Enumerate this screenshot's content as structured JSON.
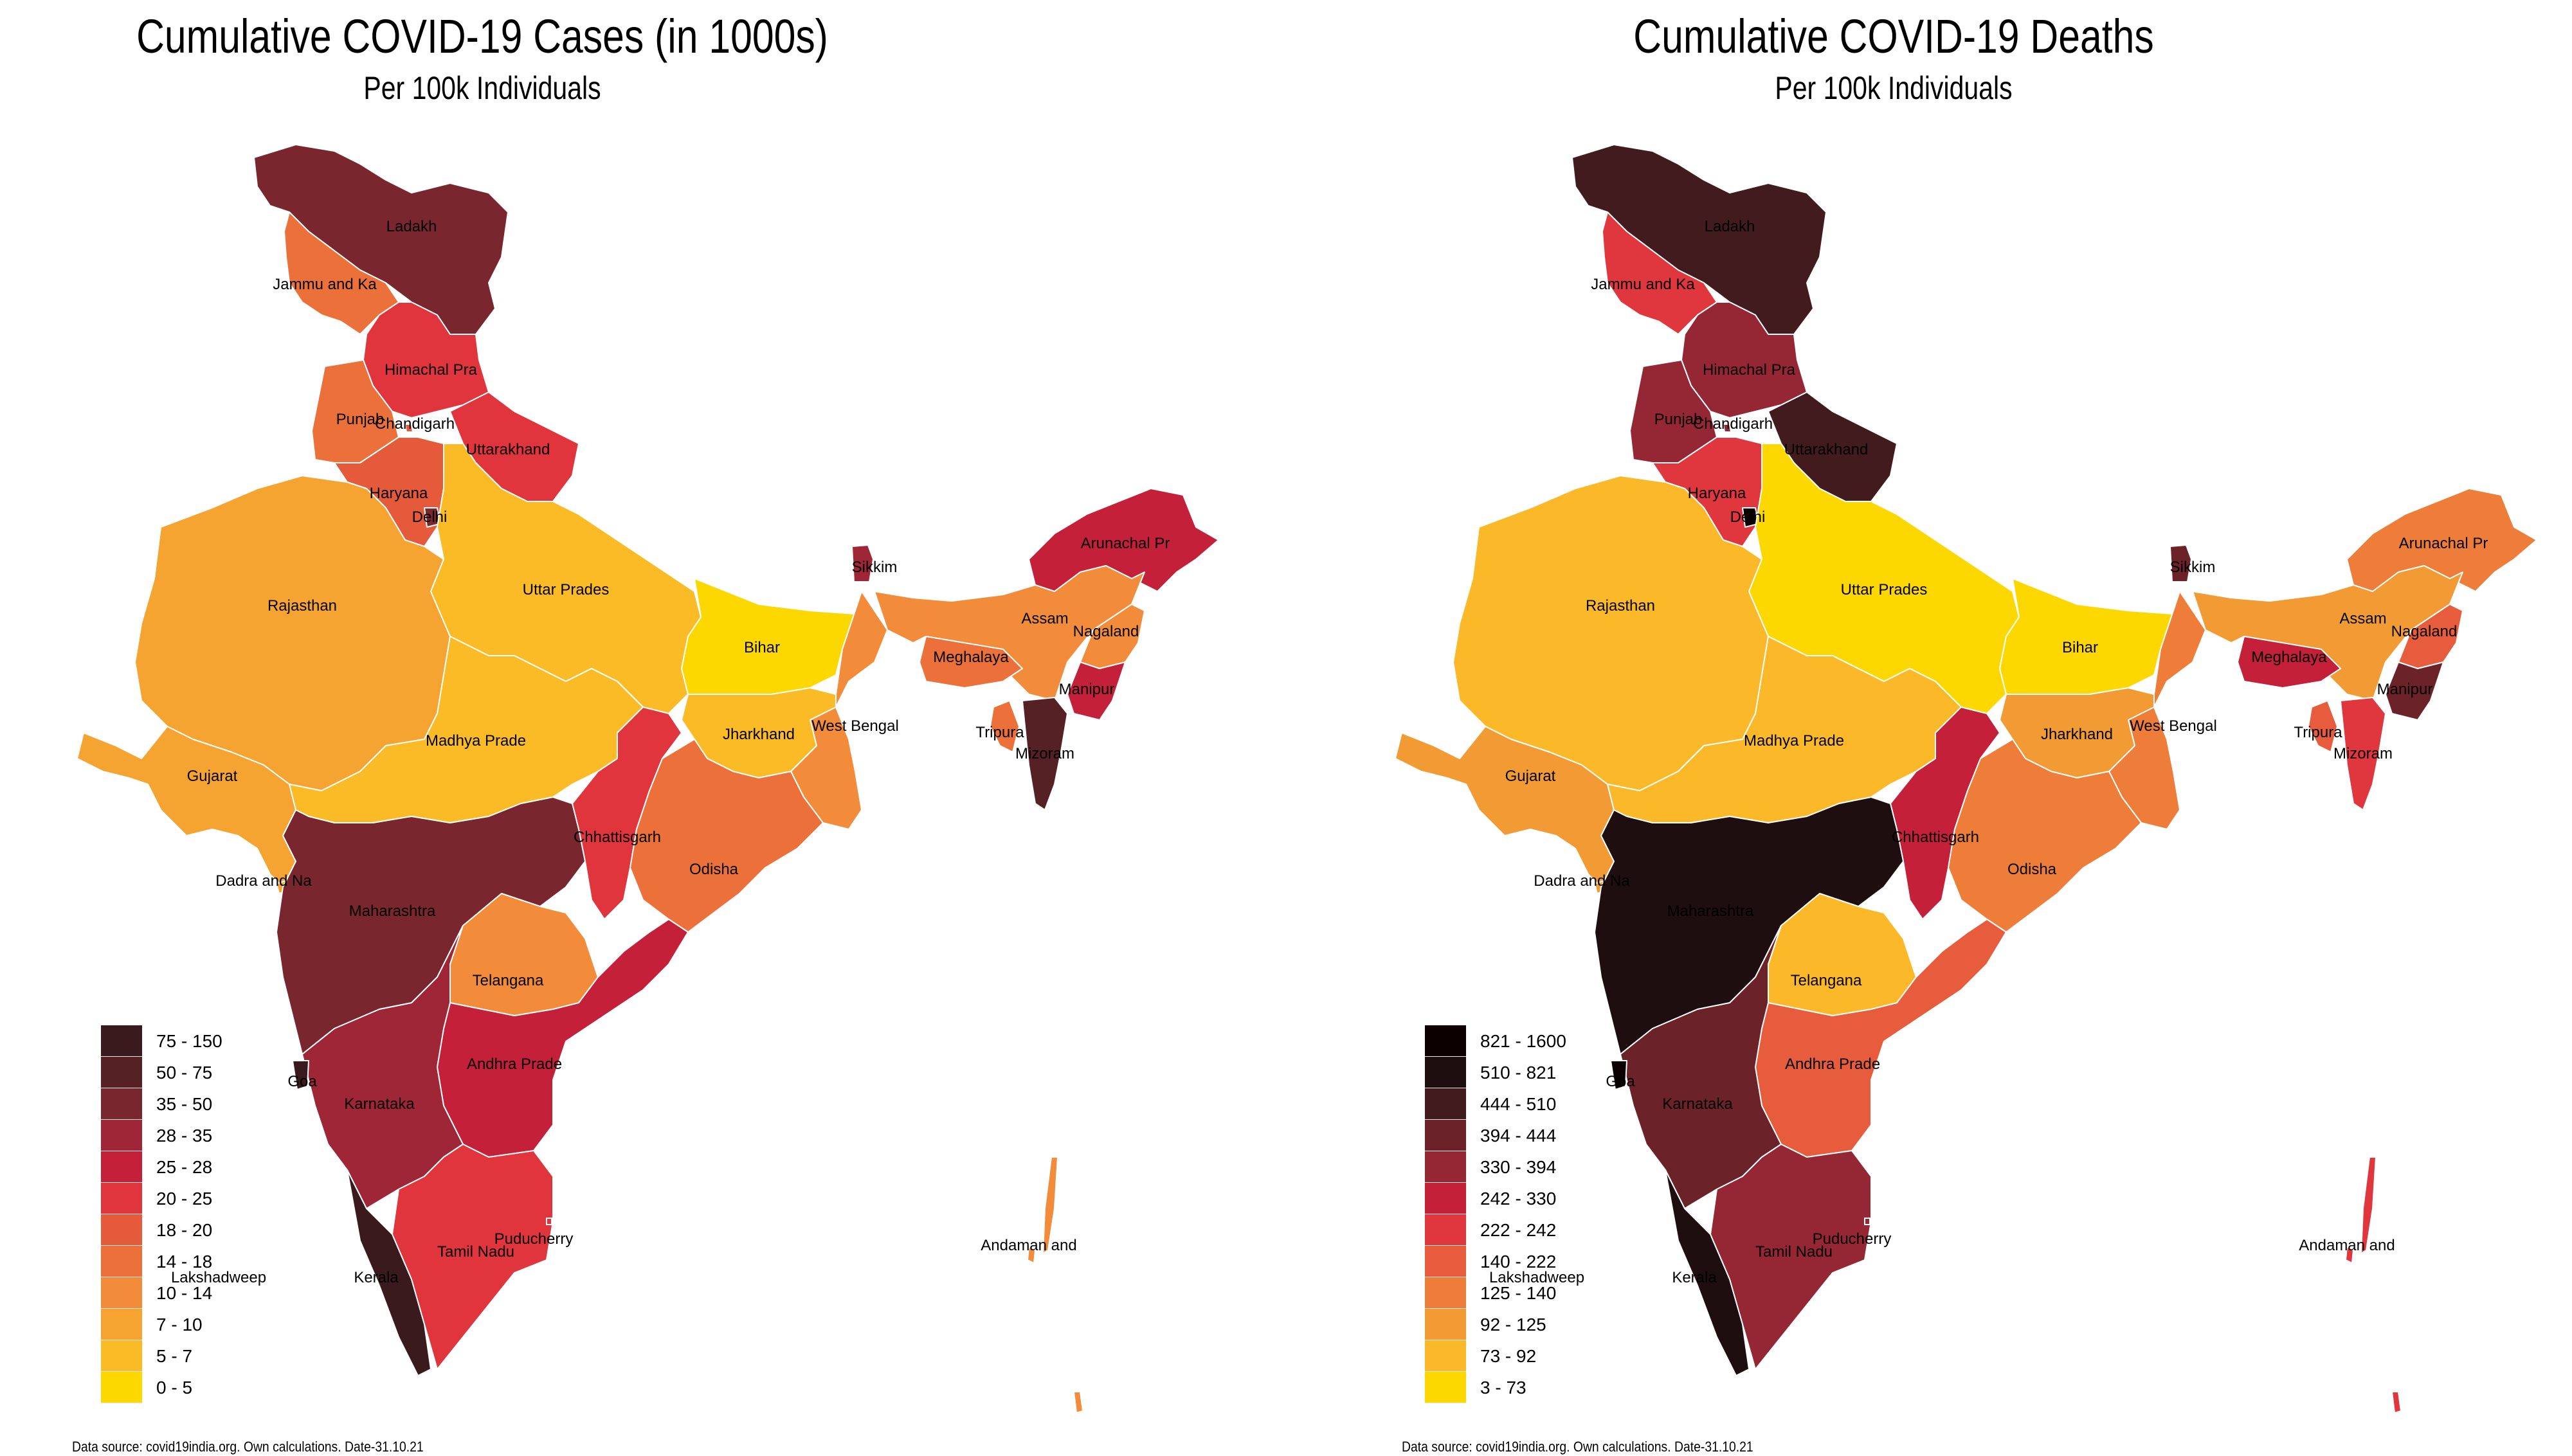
{
  "maps": [
    {
      "id": "cases",
      "title": "Cumulative COVID-19 Cases (in 1000s)",
      "subtitle": "Per 100k Individuals",
      "footer": "Data source: covid19india.org. Own calculations. Date-31.10.21",
      "legend": [
        {
          "label": "75 - 150",
          "color": "#3a1a1c"
        },
        {
          "label": "50 - 75",
          "color": "#552125"
        },
        {
          "label": "35 - 50",
          "color": "#79262e"
        },
        {
          "label": "28 - 35",
          "color": "#9e2636"
        },
        {
          "label": "25 - 28",
          "color": "#c5203a"
        },
        {
          "label": "20 - 25",
          "color": "#e0353c"
        },
        {
          "label": "18 - 20",
          "color": "#e65a3c"
        },
        {
          "label": "14 - 18",
          "color": "#eb703a"
        },
        {
          "label": "10 - 14",
          "color": "#f28b3a"
        },
        {
          "label": "7 - 10",
          "color": "#f5a331"
        },
        {
          "label": "5 - 7",
          "color": "#fbbb26"
        },
        {
          "label": "0 - 5",
          "color": "#fdd700"
        }
      ]
    },
    {
      "id": "deaths",
      "title": "Cumulative COVID-19 Deaths",
      "subtitle": "Per 100k Individuals",
      "footer": "Data source: covid19india.org. Own calculations. Date-31.10.21",
      "legend": [
        {
          "label": "821 - 1600",
          "color": "#0d0001"
        },
        {
          "label": "510 - 821",
          "color": "#1f0e0f"
        },
        {
          "label": "444 - 510",
          "color": "#421b1e"
        },
        {
          "label": "394 - 444",
          "color": "#6b2329"
        },
        {
          "label": "330 - 394",
          "color": "#942733"
        },
        {
          "label": "242 - 330",
          "color": "#c5203a"
        },
        {
          "label": "222 - 242",
          "color": "#e0363d"
        },
        {
          "label": "140 - 222",
          "color": "#e65c3c"
        },
        {
          "label": "125 - 140",
          "color": "#ee7d39"
        },
        {
          "label": "92 - 125",
          "color": "#f29b34"
        },
        {
          "label": "73 - 92",
          "color": "#fbb829"
        },
        {
          "label": "3 - 73",
          "color": "#fdd700"
        }
      ]
    }
  ],
  "chart_data": [
    {
      "type": "choropleth",
      "title": "Cumulative COVID-19 Cases (in 1000s)",
      "subtitle": "Per 100k Individuals",
      "legend_title": "",
      "legend_placement": "bottom-left",
      "bins": [
        "0 - 5",
        "5 - 7",
        "7 - 10",
        "10 - 14",
        "14 - 18",
        "18 - 20",
        "20 - 25",
        "25 - 28",
        "28 - 35",
        "35 - 50",
        "50 - 75",
        "75 - 150"
      ],
      "regions": {
        "Ladakh": "35 - 50",
        "Jammu and Ka": "14 - 18",
        "Himachal Pra": "20 - 25",
        "Punjab": "14 - 18",
        "Chandigarh": "18 - 20",
        "Uttarakhand": "20 - 25",
        "Haryana": "18 - 20",
        "Delhi": "35 - 50",
        "Rajasthan": "7 - 10",
        "Uttar Prades": "5 - 7",
        "Bihar": "0 - 5",
        "Sikkim": "28 - 35",
        "Arunachal Pr": "25 - 28",
        "Assam": "10 - 14",
        "Nagaland": "10 - 14",
        "Meghalaya": "14 - 18",
        "Manipur": "25 - 28",
        "Tripura": "14 - 18",
        "Mizoram": "50 - 75",
        "West Bengal": "10 - 14",
        "Jharkhand": "5 - 7",
        "Gujarat": "7 - 10",
        "Madhya Prade": "5 - 7",
        "Chhattisgarh": "20 - 25",
        "Odisha": "14 - 18",
        "Maharashtra": "35 - 50",
        "Telangana": "10 - 14",
        "Andhra Prade": "25 - 28",
        "Karnataka": "28 - 35",
        "Goa": "75 - 150",
        "Kerala": "75 - 150",
        "Tamil Nadu": "20 - 25",
        "Puducherry": "20 - 25",
        "Andaman and": "10 - 14",
        "Dadra and Na": "7 - 10",
        "Lakshadweep": null
      },
      "source": "Data source: covid19india.org. Own calculations. Date-31.10.21"
    },
    {
      "type": "choropleth",
      "title": "Cumulative COVID-19 Deaths",
      "subtitle": "Per 100k Individuals",
      "legend_placement": "bottom-left",
      "bins": [
        "3 - 73",
        "73 - 92",
        "92 - 125",
        "125 - 140",
        "140 - 222",
        "222 - 242",
        "242 - 330",
        "330 - 394",
        "394 - 444",
        "444 - 510",
        "510 - 821",
        "821 - 1600"
      ],
      "regions": {
        "Ladakh": "444 - 510",
        "Jammu and Ka": "222 - 242",
        "Himachal Pra": "330 - 394",
        "Punjab": "330 - 394",
        "Chandigarh": "330 - 394",
        "Uttarakhand": "444 - 510",
        "Haryana": "222 - 242",
        "Delhi": "821 - 1600",
        "Rajasthan": "73 - 92",
        "Uttar Prades": "3 - 73",
        "Bihar": "3 - 73",
        "Sikkim": "394 - 444",
        "Arunachal Pr": "125 - 140",
        "Assam": "92 - 125",
        "Nagaland": "140 - 222",
        "Meghalaya": "242 - 330",
        "Manipur": "394 - 444",
        "Tripura": "140 - 222",
        "Mizoram": "222 - 242",
        "West Bengal": "125 - 140",
        "Jharkhand": "92 - 125",
        "Gujarat": "92 - 125",
        "Madhya Prade": "73 - 92",
        "Chhattisgarh": "242 - 330",
        "Odisha": "125 - 140",
        "Maharashtra": "510 - 821",
        "Telangana": "73 - 92",
        "Andhra Prade": "140 - 222",
        "Karnataka": "394 - 444",
        "Goa": "821 - 1600",
        "Kerala": "510 - 821",
        "Tamil Nadu": "330 - 394",
        "Puducherry": "330 - 394",
        "Andaman and": "222 - 242",
        "Dadra and Na": "92 - 125",
        "Lakshadweep": null
      },
      "source": "Data source: covid19india.org. Own calculations. Date-31.10.21"
    }
  ]
}
